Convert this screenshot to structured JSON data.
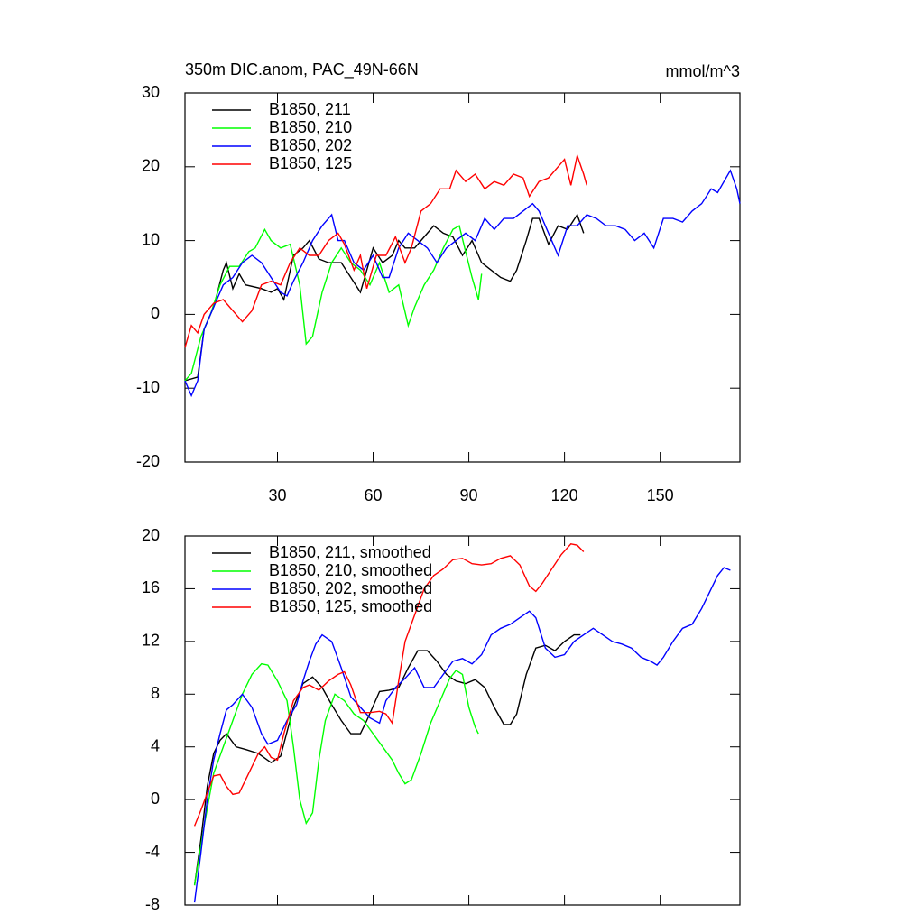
{
  "chart_data": [
    {
      "type": "line",
      "title": "350m DIC.anom, PAC_49N-66N",
      "units": "mmol/m^3",
      "xlim": [
        1,
        175
      ],
      "xticks": [
        30,
        60,
        90,
        120,
        150
      ],
      "ylim": [
        -20,
        30
      ],
      "yticks": [
        -20,
        -10,
        0,
        10,
        20,
        30
      ],
      "legend": "upper left",
      "series": [
        {
          "name": "B1850, 211",
          "color": "#000000",
          "x": [
            1,
            5,
            7,
            10,
            13,
            14,
            16,
            18,
            20,
            25,
            28,
            30,
            32,
            35,
            38,
            40,
            43,
            46,
            50,
            53,
            56,
            58,
            60,
            63,
            66,
            68,
            70,
            73,
            76,
            79,
            82,
            85,
            88,
            91,
            94,
            97,
            100,
            103,
            105,
            108,
            110,
            112,
            115,
            118,
            121,
            124,
            126
          ],
          "values": [
            -9,
            -8.5,
            -2,
            1,
            6,
            7,
            3.5,
            5.5,
            4,
            3.5,
            3,
            3.5,
            2,
            8,
            9,
            10,
            7.5,
            7,
            7,
            5,
            3,
            6,
            9,
            7,
            8,
            10,
            9,
            9,
            10.5,
            12,
            11,
            10.5,
            8,
            10,
            7,
            6,
            5,
            4.5,
            6,
            10,
            13,
            13,
            9.5,
            12,
            11.5,
            13.5,
            11
          ]
        },
        {
          "name": "B1850, 210",
          "color": "#00ff00",
          "x": [
            1,
            3,
            6,
            9,
            12,
            15,
            18,
            21,
            23,
            26,
            28,
            31,
            34,
            37,
            39,
            41,
            44,
            47,
            50,
            53,
            56,
            59,
            62,
            65,
            68,
            71,
            73,
            76,
            79,
            82,
            85,
            87,
            89,
            91,
            93,
            94
          ],
          "values": [
            -9,
            -8,
            -3,
            0,
            4,
            6.5,
            6.5,
            8.5,
            9,
            11.5,
            10,
            9,
            9.5,
            4,
            -4,
            -3,
            3,
            7,
            9,
            7,
            6,
            4,
            7,
            3,
            4,
            -1.5,
            1,
            4,
            6,
            9,
            11.5,
            12,
            8.5,
            5,
            2,
            5.5
          ]
        },
        {
          "name": "B1850, 202",
          "color": "#0000ff",
          "x": [
            1,
            3,
            5,
            7,
            10,
            13,
            16,
            19,
            22,
            25,
            28,
            31,
            33,
            35,
            38,
            41,
            44,
            47,
            49,
            51,
            54,
            57,
            60,
            63,
            65,
            68,
            71,
            74,
            77,
            80,
            83,
            86,
            89,
            92,
            95,
            98,
            101,
            104,
            107,
            110,
            112,
            115,
            118,
            121,
            124,
            127,
            130,
            133,
            136,
            139,
            142,
            145,
            148,
            151,
            154,
            157,
            160,
            163,
            166,
            168,
            170,
            172,
            174,
            175
          ],
          "values": [
            -9,
            -11,
            -9,
            -2,
            1,
            4,
            5,
            7,
            8,
            7,
            5,
            3,
            2.5,
            4.5,
            7,
            10,
            12,
            13.5,
            10,
            10,
            7,
            6,
            8,
            5,
            5,
            9,
            11,
            10,
            9,
            7,
            9,
            10,
            11,
            10,
            13,
            11.5,
            13,
            13,
            14,
            15,
            14,
            11,
            8,
            12,
            12,
            13.5,
            13,
            12,
            12,
            11.5,
            10,
            11,
            9,
            13,
            13,
            12.5,
            14,
            15,
            17,
            16.5,
            18,
            19.5,
            17,
            15
          ]
        },
        {
          "name": "B1850, 125",
          "color": "#ff0000",
          "x": [
            1,
            3,
            5,
            7,
            10,
            13,
            16,
            19,
            22,
            25,
            28,
            31,
            34,
            37,
            40,
            43,
            46,
            49,
            51,
            54,
            56,
            58,
            61,
            64,
            67,
            70,
            72,
            75,
            78,
            81,
            84,
            86,
            89,
            92,
            95,
            98,
            101,
            104,
            107,
            109,
            112,
            115,
            118,
            120,
            122,
            124,
            126,
            127
          ],
          "values": [
            -4.5,
            -1.5,
            -2.5,
            0,
            1.5,
            2,
            0.5,
            -1,
            0.5,
            4,
            4.5,
            4,
            7,
            9,
            8,
            8,
            10,
            11,
            9.5,
            6,
            8,
            3.5,
            8,
            8,
            10.5,
            7,
            9,
            14,
            15,
            17,
            17,
            19.5,
            18,
            19,
            17,
            18,
            17.5,
            19,
            18.5,
            16,
            18,
            18.5,
            20,
            21,
            17.5,
            21.5,
            19,
            17.5
          ]
        }
      ]
    },
    {
      "type": "line",
      "xlim": [
        1,
        175
      ],
      "xticks": [
        30,
        60,
        90,
        120,
        150
      ],
      "xtick_labels": false,
      "ylim": [
        -8,
        20
      ],
      "yticks": [
        -8,
        -4,
        0,
        4,
        8,
        12,
        16,
        20
      ],
      "legend": "upper left",
      "series": [
        {
          "name": "B1850, 211, smoothed",
          "color": "#000000",
          "x": [
            4,
            6,
            8,
            10,
            12,
            14,
            17,
            20,
            24,
            28,
            31,
            35,
            38,
            41,
            44,
            47,
            50,
            53,
            56,
            58,
            62,
            65,
            68,
            71,
            74,
            77,
            80,
            83,
            86,
            89,
            92,
            95,
            98,
            101,
            103,
            105,
            108,
            111,
            114,
            117,
            120,
            123,
            125
          ],
          "values": [
            -6.5,
            -3,
            1,
            3.5,
            4.5,
            5,
            4,
            3.8,
            3.5,
            2.8,
            3.3,
            7,
            8.8,
            9.3,
            8.5,
            7.2,
            6,
            5,
            5,
            6,
            8.2,
            8.3,
            8.5,
            10,
            11.3,
            11.3,
            10.5,
            9.5,
            9,
            8.8,
            9.1,
            8.5,
            7,
            5.7,
            5.7,
            6.5,
            9.5,
            11.5,
            11.7,
            11.3,
            12,
            12.5,
            12.5
          ]
        },
        {
          "name": "B1850, 210, smoothed",
          "color": "#00ff00",
          "x": [
            4,
            7,
            10,
            13,
            16,
            19,
            22,
            25,
            27,
            30,
            33,
            35,
            37,
            39,
            41,
            43,
            45,
            48,
            51,
            54,
            57,
            60,
            63,
            66,
            68,
            70,
            72,
            75,
            78,
            81,
            84,
            86,
            88,
            90,
            92,
            93
          ],
          "values": [
            -6.5,
            -2,
            2,
            4,
            6,
            8,
            9.5,
            10.3,
            10.2,
            9,
            7.5,
            4,
            0,
            -1.8,
            -1,
            3,
            6,
            8,
            7.5,
            6.5,
            6,
            5,
            4,
            3,
            2,
            1.2,
            1.5,
            3.5,
            5.8,
            7.5,
            9.2,
            9.8,
            9.5,
            7,
            5.5,
            5
          ]
        },
        {
          "name": "B1850, 202, smoothed",
          "color": "#0000ff",
          "x": [
            4,
            6,
            8,
            10,
            12,
            14,
            16,
            19,
            22,
            25,
            27,
            30,
            33,
            36,
            38,
            40,
            42,
            44,
            47,
            50,
            53,
            56,
            59,
            62,
            64,
            67,
            70,
            73,
            76,
            79,
            82,
            85,
            88,
            91,
            94,
            97,
            100,
            103,
            106,
            109,
            111,
            114,
            117,
            120,
            123,
            126,
            129,
            132,
            135,
            138,
            141,
            144,
            147,
            149,
            151,
            154,
            157,
            160,
            163,
            166,
            168,
            170,
            172
          ],
          "values": [
            -7.8,
            -4,
            0,
            3,
            5,
            6.8,
            7.2,
            8,
            7,
            5,
            4.2,
            4.5,
            6,
            7.2,
            9,
            10.5,
            11.8,
            12.5,
            12,
            10,
            7.8,
            7,
            6.2,
            5.8,
            7.5,
            8.5,
            9.2,
            10,
            8.5,
            8.5,
            9.5,
            10.5,
            10.7,
            10.3,
            11,
            12.5,
            13,
            13.3,
            13.8,
            14.3,
            13.8,
            11.5,
            10.8,
            11,
            12,
            12.5,
            13,
            12.5,
            12,
            11.8,
            11.5,
            10.8,
            10.5,
            10.2,
            10.8,
            12,
            13,
            13.3,
            14.5,
            16,
            17,
            17.6,
            17.4
          ]
        },
        {
          "name": "B1850, 125, smoothed",
          "color": "#ff0000",
          "x": [
            4,
            6,
            8,
            10,
            12,
            14,
            16,
            18,
            21,
            24,
            26,
            28,
            30,
            32,
            35,
            38,
            40,
            43,
            46,
            49,
            51,
            53,
            56,
            59,
            62,
            64,
            66,
            68,
            70,
            73,
            76,
            79,
            82,
            85,
            88,
            91,
            94,
            97,
            100,
            103,
            106,
            109,
            111,
            113,
            116,
            119,
            122,
            124,
            126
          ],
          "values": [
            -2,
            -0.8,
            0.5,
            1.8,
            1.9,
            1,
            0.4,
            0.5,
            2,
            3.5,
            4,
            3.2,
            3,
            5,
            7.5,
            8.5,
            8.7,
            8.3,
            9,
            9.5,
            9.7,
            8.7,
            6.6,
            6.6,
            6.7,
            6.5,
            5.8,
            9,
            12,
            14,
            16,
            17,
            17.5,
            18.2,
            18.3,
            17.9,
            17.8,
            17.9,
            18.3,
            18.5,
            17.8,
            16.2,
            15.8,
            16.4,
            17.5,
            18.6,
            19.4,
            19.3,
            18.8
          ]
        }
      ]
    }
  ]
}
